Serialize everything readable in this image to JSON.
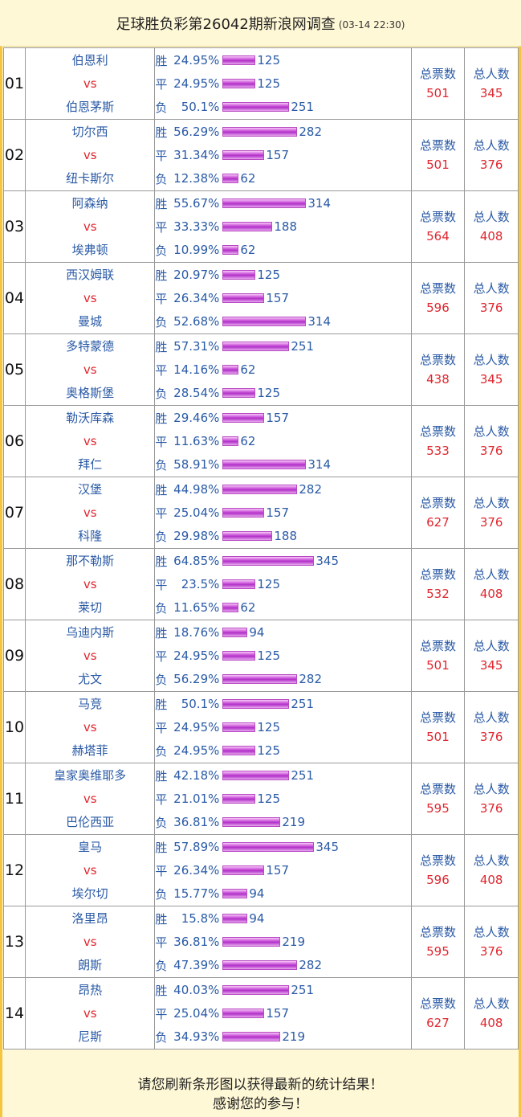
{
  "header": {
    "title": "足球胜负彩第26042期新浪网调查",
    "timestamp": "(03-14 22:30)"
  },
  "labels": {
    "vs": "vs",
    "win": "胜",
    "draw": "平",
    "lose": "负",
    "total_votes": "总票数",
    "total_people": "总人数"
  },
  "matches": [
    {
      "no": "01",
      "home": "伯恩利",
      "away": "伯恩茅斯",
      "win_pct": "24.95%",
      "win": 125,
      "draw_pct": "24.95%",
      "draw": 125,
      "lose_pct": "50.1%",
      "lose": 251,
      "votes": "501",
      "people": "345"
    },
    {
      "no": "02",
      "home": "切尔西",
      "away": "纽卡斯尔",
      "win_pct": "56.29%",
      "win": 282,
      "draw_pct": "31.34%",
      "draw": 157,
      "lose_pct": "12.38%",
      "lose": 62,
      "votes": "501",
      "people": "376"
    },
    {
      "no": "03",
      "home": "阿森纳",
      "away": "埃弗顿",
      "win_pct": "55.67%",
      "win": 314,
      "draw_pct": "33.33%",
      "draw": 188,
      "lose_pct": "10.99%",
      "lose": 62,
      "votes": "564",
      "people": "408"
    },
    {
      "no": "04",
      "home": "西汉姆联",
      "away": "曼城",
      "win_pct": "20.97%",
      "win": 125,
      "draw_pct": "26.34%",
      "draw": 157,
      "lose_pct": "52.68%",
      "lose": 314,
      "votes": "596",
      "people": "376"
    },
    {
      "no": "05",
      "home": "多特蒙德",
      "away": "奥格斯堡",
      "win_pct": "57.31%",
      "win": 251,
      "draw_pct": "14.16%",
      "draw": 62,
      "lose_pct": "28.54%",
      "lose": 125,
      "votes": "438",
      "people": "345"
    },
    {
      "no": "06",
      "home": "勒沃库森",
      "away": "拜仁",
      "win_pct": "29.46%",
      "win": 157,
      "draw_pct": "11.63%",
      "draw": 62,
      "lose_pct": "58.91%",
      "lose": 314,
      "votes": "533",
      "people": "376"
    },
    {
      "no": "07",
      "home": "汉堡",
      "away": "科隆",
      "win_pct": "44.98%",
      "win": 282,
      "draw_pct": "25.04%",
      "draw": 157,
      "lose_pct": "29.98%",
      "lose": 188,
      "votes": "627",
      "people": "376"
    },
    {
      "no": "08",
      "home": "那不勒斯",
      "away": "莱切",
      "win_pct": "64.85%",
      "win": 345,
      "draw_pct": "23.5%",
      "draw": 125,
      "lose_pct": "11.65%",
      "lose": 62,
      "votes": "532",
      "people": "408"
    },
    {
      "no": "09",
      "home": "乌迪内斯",
      "away": "尤文",
      "win_pct": "18.76%",
      "win": 94,
      "draw_pct": "24.95%",
      "draw": 125,
      "lose_pct": "56.29%",
      "lose": 282,
      "votes": "501",
      "people": "345"
    },
    {
      "no": "10",
      "home": "马竞",
      "away": "赫塔菲",
      "win_pct": "50.1%",
      "win": 251,
      "draw_pct": "24.95%",
      "draw": 125,
      "lose_pct": "24.95%",
      "lose": 125,
      "votes": "501",
      "people": "376"
    },
    {
      "no": "11",
      "home": "皇家奥维耶多",
      "away": "巴伦西亚",
      "win_pct": "42.18%",
      "win": 251,
      "draw_pct": "21.01%",
      "draw": 125,
      "lose_pct": "36.81%",
      "lose": 219,
      "votes": "595",
      "people": "376"
    },
    {
      "no": "12",
      "home": "皇马",
      "away": "埃尔切",
      "win_pct": "57.89%",
      "win": 345,
      "draw_pct": "26.34%",
      "draw": 157,
      "lose_pct": "15.77%",
      "lose": 94,
      "votes": "596",
      "people": "408"
    },
    {
      "no": "13",
      "home": "洛里昂",
      "away": "朗斯",
      "win_pct": "15.8%",
      "win": 94,
      "draw_pct": "36.81%",
      "draw": 219,
      "lose_pct": "47.39%",
      "lose": 282,
      "votes": "595",
      "people": "376"
    },
    {
      "no": "14",
      "home": "昂热",
      "away": "尼斯",
      "win_pct": "40.03%",
      "win": 251,
      "draw_pct": "25.04%",
      "draw": 157,
      "lose_pct": "34.93%",
      "lose": 219,
      "votes": "627",
      "people": "408"
    }
  ],
  "footer": {
    "line1": "请您刷新条形图以获得最新的统计结果！",
    "line2": "感谢您的参与！"
  },
  "colors": {
    "team": "#2a5aa6",
    "vs": "#e0262e",
    "bar": "#c040d0",
    "background": "#fff8d6",
    "border": "#f5c542"
  }
}
